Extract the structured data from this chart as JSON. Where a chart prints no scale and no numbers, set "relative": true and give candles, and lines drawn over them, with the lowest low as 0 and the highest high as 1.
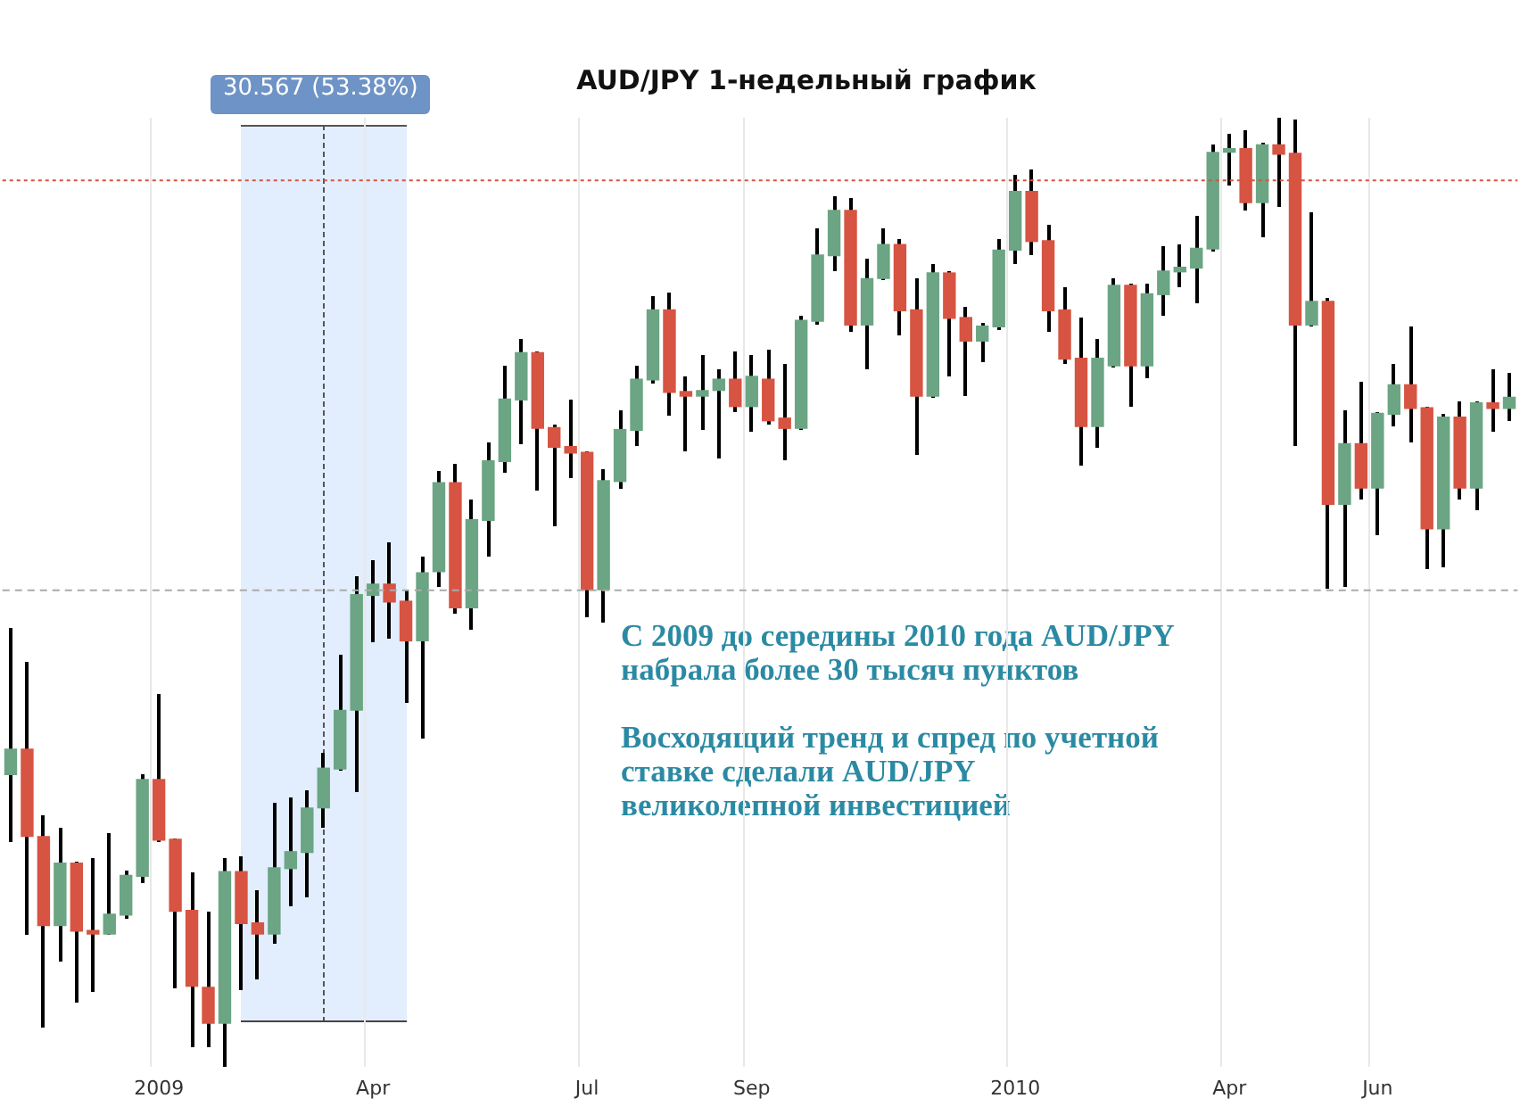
{
  "chart_data": {
    "type": "candlestick",
    "title": "AUD/JPY 1-недельный график",
    "relative": true,
    "grid": "x",
    "categories": [
      null,
      null,
      null,
      null,
      null,
      null,
      null,
      null,
      null,
      "2009",
      null,
      null,
      null,
      null,
      null,
      null,
      null,
      null,
      null,
      null,
      null,
      null,
      "Apr",
      null,
      null,
      null,
      null,
      null,
      null,
      null,
      null,
      null,
      null,
      null,
      null,
      "Jul",
      null,
      null,
      null,
      null,
      null,
      null,
      null,
      null,
      null,
      "Sep",
      null,
      null,
      null,
      null,
      null,
      null,
      null,
      null,
      null,
      null,
      null,
      null,
      null,
      null,
      null,
      "2010",
      null,
      null,
      null,
      null,
      null,
      null,
      null,
      null,
      null,
      null,
      null,
      null,
      "Apr",
      null,
      null,
      null,
      null,
      null,
      null,
      null,
      null,
      "Jun",
      null,
      null,
      null,
      null,
      null,
      null,
      null,
      null
    ],
    "ohlc": [
      [
        0.307,
        0.461,
        0.238,
        0.335
      ],
      [
        0.335,
        0.425,
        0.139,
        0.242
      ],
      [
        0.243,
        0.264,
        0.041,
        0.148
      ],
      [
        0.148,
        0.251,
        0.112,
        0.215
      ],
      [
        0.215,
        0.215,
        0.069,
        0.142
      ],
      [
        0.144,
        0.219,
        0.079,
        0.139
      ],
      [
        0.139,
        0.245,
        0.139,
        0.161
      ],
      [
        0.159,
        0.206,
        0.157,
        0.202
      ],
      [
        0.2,
        0.307,
        0.195,
        0.303
      ],
      [
        0.303,
        0.391,
        0.238,
        0.238
      ],
      [
        0.24,
        0.24,
        0.084,
        0.163
      ],
      [
        0.165,
        0.204,
        0.022,
        0.084
      ],
      [
        0.084,
        0.163,
        0.022,
        0.045
      ],
      [
        0.045,
        0.219,
        0,
        0.206
      ],
      [
        0.206,
        0.221,
        0.081,
        0.15
      ],
      [
        0.152,
        0.184,
        0.092,
        0.139
      ],
      [
        0.139,
        0.277,
        0.131,
        0.21
      ],
      [
        0.208,
        0.283,
        0.169,
        0.227
      ],
      [
        0.225,
        0.29,
        0.18,
        0.273
      ],
      [
        0.272,
        0.33,
        0.253,
        0.315
      ],
      [
        0.313,
        0.433,
        0.313,
        0.376
      ],
      [
        0.375,
        0.515,
        0.29,
        0.498
      ],
      [
        0.496,
        0.532,
        0.448,
        0.509
      ],
      [
        0.509,
        0.552,
        0.451,
        0.489
      ],
      [
        0.491,
        0.5,
        0.384,
        0.448
      ],
      [
        0.448,
        0.536,
        0.346,
        0.521
      ],
      [
        0.521,
        0.627,
        0.506,
        0.616
      ],
      [
        0.616,
        0.635,
        0.478,
        0.483
      ],
      [
        0.483,
        0.596,
        0.461,
        0.577
      ],
      [
        0.575,
        0.657,
        0.539,
        0.639
      ],
      [
        0.637,
        0.738,
        0.627,
        0.704
      ],
      [
        0.702,
        0.766,
        0.657,
        0.753
      ],
      [
        0.753,
        0.753,
        0.607,
        0.672
      ],
      [
        0.674,
        0.676,
        0.571,
        0.652
      ],
      [
        0.654,
        0.702,
        0.622,
        0.646
      ],
      [
        0.648,
        0.648,
        0.474,
        0.502
      ],
      [
        0.502,
        0.629,
        0.468,
        0.618
      ],
      [
        0.616,
        0.691,
        0.609,
        0.672
      ],
      [
        0.67,
        0.738,
        0.655,
        0.725
      ],
      [
        0.723,
        0.811,
        0.721,
        0.798
      ],
      [
        0.798,
        0.815,
        0.687,
        0.71
      ],
      [
        0.712,
        0.727,
        0.65,
        0.706
      ],
      [
        0.706,
        0.749,
        0.672,
        0.713
      ],
      [
        0.712,
        0.734,
        0.642,
        0.725
      ],
      [
        0.725,
        0.753,
        0.691,
        0.695
      ],
      [
        0.695,
        0.749,
        0.67,
        0.728
      ],
      [
        0.725,
        0.755,
        0.678,
        0.68
      ],
      [
        0.684,
        0.74,
        0.64,
        0.672
      ],
      [
        0.672,
        0.79,
        0.672,
        0.787
      ],
      [
        0.785,
        0.882,
        0.783,
        0.856
      ],
      [
        0.854,
        0.916,
        0.839,
        0.903
      ],
      [
        0.903,
        0.914,
        0.775,
        0.781
      ],
      [
        0.781,
        0.85,
        0.736,
        0.831
      ],
      [
        0.83,
        0.882,
        0.83,
        0.867
      ],
      [
        0.867,
        0.871,
        0.772,
        0.796
      ],
      [
        0.798,
        0.83,
        0.646,
        0.706
      ],
      [
        0.706,
        0.845,
        0.706,
        0.837
      ],
      [
        0.837,
        0.837,
        0.728,
        0.788
      ],
      [
        0.79,
        0.8,
        0.708,
        0.764
      ],
      [
        0.764,
        0.783,
        0.743,
        0.781
      ],
      [
        0.779,
        0.871,
        0.777,
        0.861
      ],
      [
        0.86,
        0.938,
        0.846,
        0.923
      ],
      [
        0.923,
        0.944,
        0.856,
        0.869
      ],
      [
        0.871,
        0.886,
        0.775,
        0.796
      ],
      [
        0.798,
        0.82,
        0.742,
        0.745
      ],
      [
        0.747,
        0.788,
        0.635,
        0.674
      ],
      [
        0.674,
        0.766,
        0.654,
        0.747
      ],
      [
        0.738,
        0.83,
        0.738,
        0.824
      ],
      [
        0.824,
        0.824,
        0.697,
        0.738
      ],
      [
        0.738,
        0.824,
        0.727,
        0.815
      ],
      [
        0.813,
        0.863,
        0.792,
        0.839
      ],
      [
        0.837,
        0.865,
        0.822,
        0.843
      ],
      [
        0.841,
        0.895,
        0.805,
        0.863
      ],
      [
        0.861,
        0.97,
        0.86,
        0.964
      ],
      [
        0.963,
        0.983,
        0.929,
        0.968
      ],
      [
        0.968,
        0.985,
        0.904,
        0.91
      ],
      [
        0.91,
        0.972,
        0.875,
        0.972
      ],
      [
        0.972,
        1,
        0.906,
        0.961
      ],
      [
        0.963,
        0.998,
        0.655,
        0.781
      ],
      [
        0.781,
        0.899,
        0.781,
        0.807
      ],
      [
        0.807,
        0.809,
        0.504,
        0.592
      ],
      [
        0.592,
        0.691,
        0.507,
        0.657
      ],
      [
        0.657,
        0.721,
        0.599,
        0.609
      ],
      [
        0.609,
        0.689,
        0.56,
        0.689
      ],
      [
        0.687,
        0.74,
        0.676,
        0.719
      ],
      [
        0.719,
        0.779,
        0.659,
        0.693
      ],
      [
        0.695,
        0.695,
        0.526,
        0.566
      ],
      [
        0.566,
        0.687,
        0.528,
        0.685
      ],
      [
        0.685,
        0.7,
        0.599,
        0.609
      ],
      [
        0.609,
        0.7,
        0.588,
        0.7
      ],
      [
        0.7,
        0.734,
        0.67,
        0.693
      ],
      [
        0.693,
        0.73,
        0.682,
        0.706
      ]
    ],
    "colors": [
      "#6ba583",
      "#d75442",
      "#d75442",
      "#6ba583",
      "#d75442",
      "#d75442",
      "#6ba583",
      "#6ba583",
      "#6ba583",
      "#d75442",
      "#d75442",
      "#d75442",
      "#d75442",
      "#6ba583",
      "#d75442",
      "#d75442",
      "#6ba583",
      "#6ba583",
      "#6ba583",
      "#6ba583",
      "#6ba583",
      "#6ba583",
      "#6ba583",
      "#d75442",
      "#d75442",
      "#6ba583",
      "#6ba583",
      "#d75442",
      "#6ba583",
      "#6ba583",
      "#6ba583",
      "#6ba583",
      "#d75442",
      "#d75442",
      "#d75442",
      "#d75442",
      "#6ba583",
      "#6ba583",
      "#6ba583",
      "#6ba583",
      "#d75442",
      "#d75442",
      "#6ba583",
      "#6ba583",
      "#d75442",
      "#6ba583",
      "#d75442",
      "#d75442",
      "#6ba583",
      "#6ba583",
      "#6ba583",
      "#d75442",
      "#6ba583",
      "#6ba583",
      "#d75442",
      "#d75442",
      "#6ba583",
      "#d75442",
      "#d75442",
      "#6ba583",
      "#6ba583",
      "#6ba583",
      "#d75442",
      "#d75442",
      "#d75442",
      "#d75442",
      "#6ba583",
      "#6ba583",
      "#d75442",
      "#6ba583",
      "#6ba583",
      "#6ba583",
      "#6ba583",
      "#6ba583",
      "#6ba583",
      "#d75442",
      "#6ba583",
      "#d75442",
      "#d75442",
      "#6ba583",
      "#d75442",
      "#6ba583",
      "#d75442",
      "#6ba583",
      "#6ba583",
      "#d75442",
      "#d75442",
      "#6ba583",
      "#d75442",
      "#6ba583",
      "#d75442",
      "#6ba583"
    ],
    "ref_lines": [
      {
        "axis": "y",
        "value": 0.934,
        "color": "#d75442",
        "line_style": "dotted"
      },
      {
        "axis": "y",
        "value": 0.502,
        "color": "#aaaaaa",
        "line_style": "dashed"
      }
    ],
    "annotations": [
      "30.567 (53.38%)",
      "С 2009 до середины 2010 года AUD/JPY набрала более 30 тысяч пунктов",
      "Восходящий тренд и спред по учетной ставке сделали AUD/JPY великолепной инвестицией"
    ]
  }
}
